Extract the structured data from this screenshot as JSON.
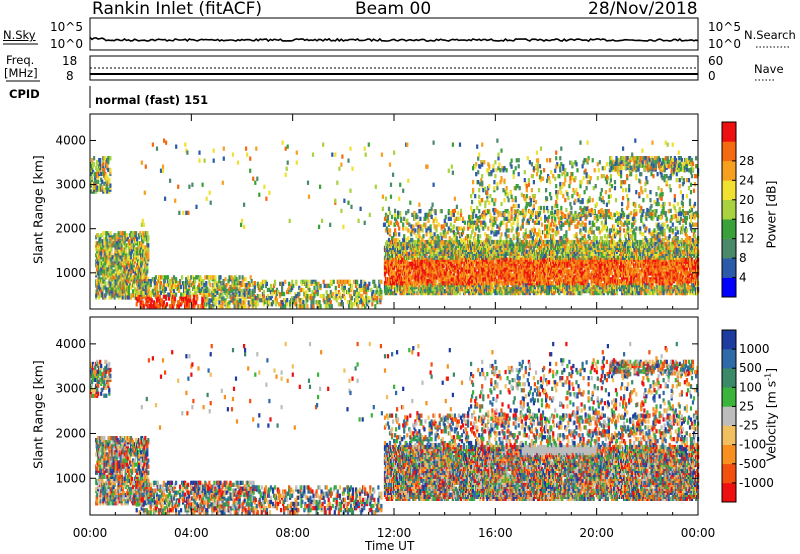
{
  "header": {
    "site": "Rankin Inlet (fitACF)",
    "beam": "Beam 00",
    "date": "28/Nov/2018"
  },
  "noise_panel": {
    "left_label": "N.Sky",
    "right_label": "N.Search",
    "left_ticks": [
      "10^5",
      "10^0"
    ],
    "right_ticks": [
      "10^5",
      "10^0"
    ]
  },
  "freq_panel": {
    "left_label_1": "Freq.",
    "left_label_2": "[MHz]",
    "right_label": "Nave",
    "left_ticks": [
      "18",
      "8"
    ],
    "right_ticks": [
      "60",
      "0"
    ]
  },
  "cpid_panel": {
    "label": "CPID",
    "value": "normal (fast) 151"
  },
  "chart_data": [
    {
      "type": "heatmap",
      "quantity": "Power",
      "ylabel": "Slant Range [km]",
      "ylim": [
        180,
        4600
      ],
      "y_ticks": [
        "1000",
        "2000",
        "3000",
        "4000"
      ],
      "x_ticks": [
        "00:00",
        "04:00",
        "08:00",
        "12:00",
        "16:00",
        "20:00",
        "00:00"
      ],
      "colorbar": {
        "label": "Power [dB]",
        "ticks": [
          "4",
          "8",
          "12",
          "16",
          "20",
          "24",
          "28"
        ],
        "colors": [
          "#0000ff",
          "#2b5aa8",
          "#4a8a6a",
          "#3aa13a",
          "#a8d240",
          "#f0e030",
          "#f7a020",
          "#f36a10",
          "#ee1010"
        ]
      }
    },
    {
      "type": "heatmap",
      "quantity": "Velocity",
      "ylabel": "Slant Range [km]",
      "ylim": [
        180,
        4600
      ],
      "y_ticks": [
        "1000",
        "2000",
        "3000",
        "4000"
      ],
      "x_ticks": [
        "00:00",
        "04:00",
        "08:00",
        "12:00",
        "16:00",
        "20:00",
        "00:00"
      ],
      "xlabel": "Time UT",
      "colorbar": {
        "label": "Velocity [m s",
        "label_sup": "-1",
        "label_end": "]",
        "ticks": [
          "1000",
          "500",
          "100",
          "25",
          "-25",
          "-100",
          "-500",
          "-1000"
        ],
        "colors": [
          "#1e3ca0",
          "#2e6aa8",
          "#3a8a6a",
          "#3ab43a",
          "#bdbdbd",
          "#f0c060",
          "#f79020",
          "#f35010",
          "#ee1010"
        ]
      }
    }
  ]
}
